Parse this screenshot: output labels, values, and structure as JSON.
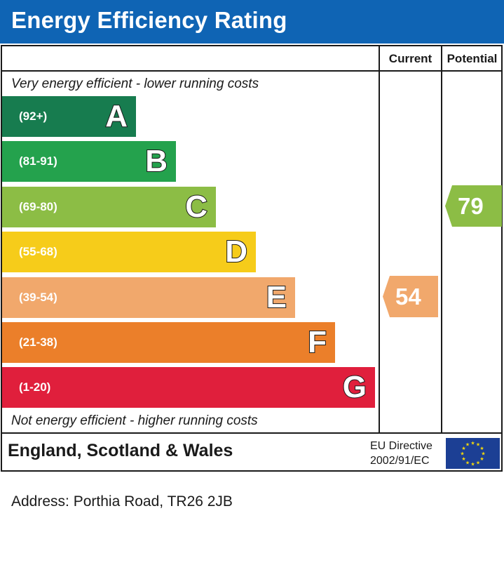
{
  "title": "Energy Efficiency Rating",
  "columns": {
    "current": "Current",
    "potential": "Potential"
  },
  "notes": {
    "top": "Very energy efficient - lower running costs",
    "bottom": "Not energy efficient - higher running costs"
  },
  "chart_data": {
    "type": "bar",
    "title": "Energy Efficiency Rating",
    "categories": [
      "A",
      "B",
      "C",
      "D",
      "E",
      "F",
      "G"
    ],
    "bands": [
      {
        "letter": "A",
        "range": "(92+)",
        "min": 92,
        "max": 100,
        "color": "#177c4f"
      },
      {
        "letter": "B",
        "range": "(81-91)",
        "min": 81,
        "max": 91,
        "color": "#24a24d"
      },
      {
        "letter": "C",
        "range": "(69-80)",
        "min": 69,
        "max": 80,
        "color": "#8cbd45"
      },
      {
        "letter": "D",
        "range": "(55-68)",
        "min": 55,
        "max": 68,
        "color": "#f6cc1a"
      },
      {
        "letter": "E",
        "range": "(39-54)",
        "min": 39,
        "max": 54,
        "color": "#f1a86c"
      },
      {
        "letter": "F",
        "range": "(21-38)",
        "min": 21,
        "max": 38,
        "color": "#eb7f2a"
      },
      {
        "letter": "G",
        "range": "(1-20)",
        "min": 1,
        "max": 20,
        "color": "#e01f3c"
      }
    ],
    "current": {
      "value": 54,
      "label": "54",
      "band": "E",
      "color": "#f1a86c"
    },
    "potential": {
      "value": 79,
      "label": "79",
      "band": "C",
      "color": "#8cbd45"
    }
  },
  "footer": {
    "country": "England, Scotland & Wales",
    "eu_line1": "EU Directive",
    "eu_line2": "2002/91/EC",
    "flag_icon": "eu-flag-icon"
  },
  "address": "Address: Porthia Road, TR26 2JB"
}
